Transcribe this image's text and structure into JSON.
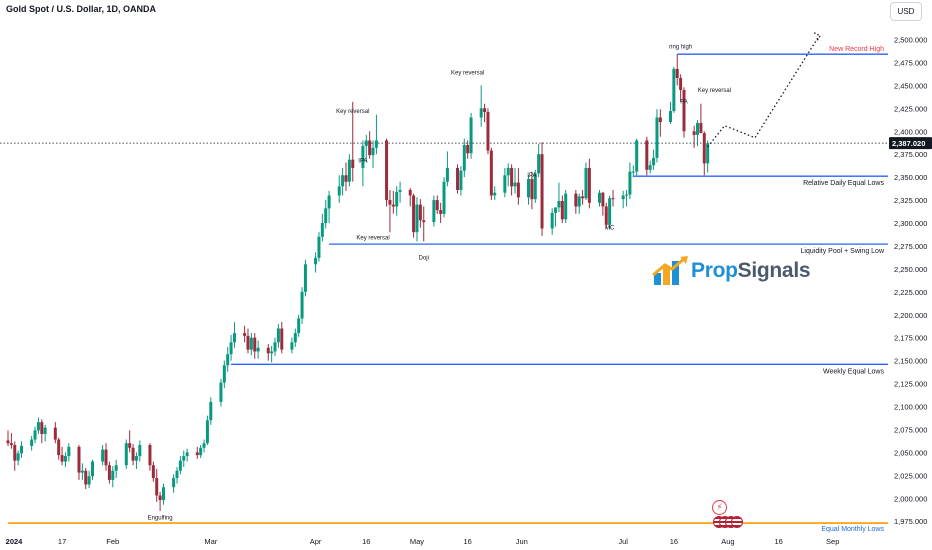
{
  "title": "Gold Spot / U.S. Dollar, 1D, OANDA",
  "currency_button": "USD",
  "watermark": {
    "part1": "Prop",
    "part2": "Signals"
  },
  "chart_data": {
    "type": "candlestick",
    "symbol": "XAUUSD",
    "interval": "1D",
    "ylim": [
      1966,
      2514
    ],
    "xlim": [
      "2024-01-01",
      "2024-09-06"
    ],
    "y_ticks": [
      1975,
      2000,
      2025,
      2050,
      2075,
      2100,
      2125,
      2150,
      2175,
      2200,
      2225,
      2250,
      2275,
      2300,
      2325,
      2350,
      2375,
      2400,
      2425,
      2450,
      2475,
      2500
    ],
    "y_tick_labels": [
      "1,975.000",
      "2,000.000",
      "2,025.000",
      "2,050.000",
      "2,075.000",
      "2,100.000",
      "2,125.000",
      "2,150.000",
      "2,175.000",
      "2,200.000",
      "2,225.000",
      "2,250.000",
      "2,275.000",
      "2,300.000",
      "2,325.000",
      "2,350.000",
      "2,375.000",
      "2,400.000",
      "2,425.000",
      "2,450.000",
      "2,475.000",
      "2,500.000"
    ],
    "x_ticks": [
      {
        "date": "2024-01-01",
        "label": "2024"
      },
      {
        "date": "2024-01-17",
        "label": "17"
      },
      {
        "date": "2024-02-01",
        "label": "Feb"
      },
      {
        "date": "2024-03-01",
        "label": "Mar"
      },
      {
        "date": "2024-04-01",
        "label": "Apr"
      },
      {
        "date": "2024-04-16",
        "label": "16"
      },
      {
        "date": "2024-05-01",
        "label": "May"
      },
      {
        "date": "2024-05-16",
        "label": "16"
      },
      {
        "date": "2024-06-01",
        "label": "Jun"
      },
      {
        "date": "2024-07-01",
        "label": "Jul"
      },
      {
        "date": "2024-07-16",
        "label": "16"
      },
      {
        "date": "2024-08-01",
        "label": "Aug"
      },
      {
        "date": "2024-08-16",
        "label": "16"
      },
      {
        "date": "2024-09-01",
        "label": "Sep"
      }
    ],
    "last_price": 2387.02,
    "last_price_label": "2,387.020",
    "colors": {
      "up": "#089981",
      "down": "#9c2b3c",
      "level": "#2962ff",
      "equal_monthly": "#ff9800",
      "red_text": "#f23645",
      "path": "#131722"
    },
    "levels": [
      {
        "label": "New Record High",
        "value": 2484,
        "from": "2024-07-17",
        "to": "2024-09-06",
        "color": "#f23645"
      },
      {
        "label": "Relative Daily Equal Lows",
        "value": 2351,
        "from": "2024-07-04",
        "to": "2024-09-06",
        "color": "#131722"
      },
      {
        "label": "Liquidity Pool + Swing Low",
        "value": 2277,
        "from": "2024-04-05",
        "to": "2024-09-06",
        "color": "#131722"
      },
      {
        "label": "Weekly Equal Lows",
        "value": 2146,
        "from": "2024-03-07",
        "to": "2024-09-06",
        "color": "#131722"
      },
      {
        "label": "Equal Monthly Lows",
        "value": 1973,
        "from": "2024-01-01",
        "to": "2024-09-06",
        "color": "#1e6bd6"
      }
    ],
    "projection": [
      [
        "2024-07-26",
        2383
      ],
      [
        "2024-07-31",
        2406
      ],
      [
        "2024-08-09",
        2393
      ],
      [
        "2024-08-28",
        2504
      ]
    ],
    "annotations": [
      {
        "text": "Key reversal",
        "date": "2024-04-12",
        "price": 2420
      },
      {
        "text": "IPA",
        "date": "2024-04-15",
        "price": 2366
      },
      {
        "text": "Key reversal",
        "date": "2024-04-18",
        "price": 2282
      },
      {
        "text": "Doji",
        "date": "2024-05-03",
        "price": 2260
      },
      {
        "text": "Key reversal",
        "date": "2024-05-16",
        "price": 2462
      },
      {
        "text": "IPA",
        "date": "2024-06-04",
        "price": 2350
      },
      {
        "text": "MC",
        "date": "2024-06-27",
        "price": 2293
      },
      {
        "text": "ring high",
        "date": "2024-07-18",
        "price": 2490
      },
      {
        "text": "Key reversal",
        "date": "2024-07-28",
        "price": 2443
      },
      {
        "text": "PA",
        "date": "2024-07-19",
        "price": 2430
      },
      {
        "text": "Engulfing",
        "date": "2024-02-15",
        "price": 1977
      }
    ],
    "candles": [
      [
        "2024-01-01",
        2063,
        2074,
        2057,
        2060
      ],
      [
        "2024-01-02",
        2060,
        2071,
        2054,
        2058
      ],
      [
        "2024-01-03",
        2058,
        2062,
        2030,
        2041
      ],
      [
        "2024-01-04",
        2041,
        2052,
        2036,
        2049
      ],
      [
        "2024-01-05",
        2049,
        2062,
        2044,
        2057
      ],
      [
        "2024-01-08",
        2057,
        2068,
        2052,
        2064
      ],
      [
        "2024-01-09",
        2064,
        2078,
        2060,
        2074
      ],
      [
        "2024-01-10",
        2074,
        2088,
        2070,
        2083
      ],
      [
        "2024-01-11",
        2083,
        2086,
        2060,
        2070
      ],
      [
        "2024-01-12",
        2070,
        2080,
        2062,
        2077
      ],
      [
        "2024-01-15",
        2077,
        2083,
        2060,
        2064
      ],
      [
        "2024-01-16",
        2064,
        2066,
        2042,
        2047
      ],
      [
        "2024-01-17",
        2047,
        2056,
        2036,
        2040
      ],
      [
        "2024-01-18",
        2040,
        2050,
        2034,
        2046
      ],
      [
        "2024-01-19",
        2046,
        2060,
        2040,
        2056
      ],
      [
        "2024-01-22",
        2056,
        2058,
        2020,
        2028
      ],
      [
        "2024-01-23",
        2028,
        2038,
        2020,
        2030
      ],
      [
        "2024-01-24",
        2030,
        2033,
        2010,
        2015
      ],
      [
        "2024-01-25",
        2015,
        2030,
        2011,
        2024
      ],
      [
        "2024-01-26",
        2024,
        2042,
        2020,
        2040
      ],
      [
        "2024-01-29",
        2040,
        2058,
        2036,
        2053
      ],
      [
        "2024-01-30",
        2053,
        2060,
        2030,
        2036
      ],
      [
        "2024-01-31",
        2036,
        2040,
        2016,
        2020
      ],
      [
        "2024-02-01",
        2020,
        2035,
        2012,
        2030
      ],
      [
        "2024-02-02",
        2030,
        2042,
        2022,
        2036
      ],
      [
        "2024-02-05",
        2036,
        2064,
        2032,
        2060
      ],
      [
        "2024-02-06",
        2060,
        2074,
        2050,
        2055
      ],
      [
        "2024-02-07",
        2055,
        2059,
        2036,
        2041
      ],
      [
        "2024-02-08",
        2041,
        2050,
        2032,
        2046
      ],
      [
        "2024-02-09",
        2046,
        2063,
        2040,
        2058
      ],
      [
        "2024-02-12",
        2058,
        2060,
        2030,
        2036
      ],
      [
        "2024-02-13",
        2036,
        2040,
        2018,
        2022
      ],
      [
        "2024-02-14",
        2022,
        2032,
        1996,
        2003
      ],
      [
        "2024-02-15",
        2003,
        2007,
        1986,
        1998
      ],
      [
        "2024-02-16",
        1998,
        2016,
        1993,
        2012
      ],
      [
        "2024-02-19",
        2012,
        2026,
        2006,
        2022
      ],
      [
        "2024-02-20",
        2022,
        2034,
        2016,
        2030
      ],
      [
        "2024-02-21",
        2030,
        2046,
        2026,
        2041
      ],
      [
        "2024-02-22",
        2041,
        2052,
        2034,
        2046
      ],
      [
        "2024-02-23",
        2046,
        2054,
        2040,
        2050
      ],
      [
        "2024-02-26",
        2050,
        2056,
        2043,
        2047
      ],
      [
        "2024-02-27",
        2047,
        2058,
        2044,
        2055
      ],
      [
        "2024-02-28",
        2055,
        2064,
        2050,
        2060
      ],
      [
        "2024-02-29",
        2060,
        2090,
        2058,
        2085
      ],
      [
        "2024-03-01",
        2085,
        2110,
        2080,
        2105
      ],
      [
        "2024-03-04",
        2105,
        2130,
        2100,
        2126
      ],
      [
        "2024-03-05",
        2126,
        2150,
        2120,
        2145
      ],
      [
        "2024-03-06",
        2145,
        2165,
        2138,
        2157
      ],
      [
        "2024-03-07",
        2157,
        2178,
        2150,
        2170
      ],
      [
        "2024-03-08",
        2170,
        2192,
        2164,
        2180
      ],
      [
        "2024-03-11",
        2180,
        2188,
        2170,
        2177
      ],
      [
        "2024-03-12",
        2177,
        2185,
        2158,
        2162
      ],
      [
        "2024-03-13",
        2162,
        2180,
        2156,
        2175
      ],
      [
        "2024-03-14",
        2175,
        2180,
        2152,
        2160
      ],
      [
        "2024-03-15",
        2160,
        2172,
        2152,
        2164
      ],
      [
        "2024-03-18",
        2164,
        2168,
        2150,
        2158
      ],
      [
        "2024-03-19",
        2158,
        2166,
        2148,
        2160
      ],
      [
        "2024-03-20",
        2160,
        2175,
        2155,
        2170
      ],
      [
        "2024-03-21",
        2170,
        2190,
        2164,
        2185
      ],
      [
        "2024-03-22",
        2185,
        2192,
        2158,
        2162
      ],
      [
        "2024-03-25",
        2162,
        2175,
        2158,
        2170
      ],
      [
        "2024-03-26",
        2170,
        2185,
        2165,
        2180
      ],
      [
        "2024-03-27",
        2180,
        2200,
        2176,
        2196
      ],
      [
        "2024-03-28",
        2196,
        2230,
        2190,
        2225
      ],
      [
        "2024-03-29",
        2225,
        2260,
        2220,
        2255
      ],
      [
        "2024-04-01",
        2255,
        2268,
        2246,
        2262
      ],
      [
        "2024-04-02",
        2262,
        2290,
        2258,
        2285
      ],
      [
        "2024-04-03",
        2285,
        2310,
        2280,
        2300
      ],
      [
        "2024-04-04",
        2300,
        2325,
        2294,
        2316
      ],
      [
        "2024-04-05",
        2316,
        2335,
        2300,
        2330
      ],
      [
        "2024-04-08",
        2330,
        2352,
        2322,
        2340
      ],
      [
        "2024-04-09",
        2340,
        2360,
        2330,
        2352
      ],
      [
        "2024-04-10",
        2352,
        2366,
        2335,
        2345
      ],
      [
        "2024-04-11",
        2345,
        2375,
        2340,
        2369
      ],
      [
        "2024-04-12",
        2369,
        2432,
        2345,
        2360
      ],
      [
        "2024-04-15",
        2360,
        2390,
        2340,
        2384
      ],
      [
        "2024-04-16",
        2384,
        2396,
        2366,
        2390
      ],
      [
        "2024-04-17",
        2390,
        2400,
        2370,
        2374
      ],
      [
        "2024-04-18",
        2374,
        2390,
        2360,
        2382
      ],
      [
        "2024-04-19",
        2382,
        2418,
        2375,
        2390
      ],
      [
        "2024-04-22",
        2390,
        2392,
        2318,
        2325
      ],
      [
        "2024-04-23",
        2325,
        2336,
        2290,
        2320
      ],
      [
        "2024-04-24",
        2320,
        2335,
        2310,
        2318
      ],
      [
        "2024-04-25",
        2318,
        2340,
        2308,
        2334
      ],
      [
        "2024-04-26",
        2334,
        2345,
        2322,
        2336
      ],
      [
        "2024-04-29",
        2336,
        2338,
        2318,
        2330
      ],
      [
        "2024-04-30",
        2330,
        2332,
        2284,
        2290
      ],
      [
        "2024-05-01",
        2290,
        2328,
        2280,
        2320
      ],
      [
        "2024-05-02",
        2320,
        2326,
        2295,
        2303
      ],
      [
        "2024-05-03",
        2303,
        2318,
        2280,
        2301
      ],
      [
        "2024-05-06",
        2301,
        2330,
        2296,
        2325
      ],
      [
        "2024-05-07",
        2325,
        2330,
        2310,
        2314
      ],
      [
        "2024-05-08",
        2314,
        2322,
        2300,
        2310
      ],
      [
        "2024-05-09",
        2310,
        2350,
        2306,
        2345
      ],
      [
        "2024-05-10",
        2345,
        2378,
        2340,
        2360
      ],
      [
        "2024-05-13",
        2360,
        2364,
        2332,
        2336
      ],
      [
        "2024-05-14",
        2336,
        2362,
        2330,
        2357
      ],
      [
        "2024-05-15",
        2357,
        2392,
        2350,
        2385
      ],
      [
        "2024-05-16",
        2385,
        2390,
        2370,
        2376
      ],
      [
        "2024-05-17",
        2376,
        2420,
        2370,
        2415
      ],
      [
        "2024-05-20",
        2415,
        2450,
        2405,
        2425
      ],
      [
        "2024-05-21",
        2425,
        2430,
        2410,
        2421
      ],
      [
        "2024-05-22",
        2421,
        2425,
        2375,
        2379
      ],
      [
        "2024-05-23",
        2379,
        2382,
        2325,
        2330
      ],
      [
        "2024-05-24",
        2330,
        2340,
        2325,
        2333
      ],
      [
        "2024-05-27",
        2333,
        2360,
        2328,
        2352
      ],
      [
        "2024-05-28",
        2352,
        2365,
        2340,
        2360
      ],
      [
        "2024-05-29",
        2360,
        2364,
        2330,
        2340
      ],
      [
        "2024-05-30",
        2340,
        2360,
        2332,
        2344
      ],
      [
        "2024-05-31",
        2344,
        2360,
        2320,
        2328
      ],
      [
        "2024-06-03",
        2328,
        2352,
        2320,
        2348
      ],
      [
        "2024-06-04",
        2348,
        2356,
        2315,
        2326
      ],
      [
        "2024-06-05",
        2326,
        2358,
        2322,
        2354
      ],
      [
        "2024-06-06",
        2354,
        2386,
        2350,
        2375
      ],
      [
        "2024-06-07",
        2375,
        2388,
        2286,
        2294
      ],
      [
        "2024-06-10",
        2294,
        2316,
        2287,
        2311
      ],
      [
        "2024-06-11",
        2311,
        2316,
        2296,
        2317
      ],
      [
        "2024-06-12",
        2317,
        2344,
        2312,
        2324
      ],
      [
        "2024-06-13",
        2324,
        2330,
        2300,
        2304
      ],
      [
        "2024-06-14",
        2304,
        2336,
        2300,
        2332
      ],
      [
        "2024-06-17",
        2332,
        2336,
        2310,
        2318
      ],
      [
        "2024-06-18",
        2318,
        2332,
        2310,
        2329
      ],
      [
        "2024-06-19",
        2329,
        2336,
        2320,
        2327
      ],
      [
        "2024-06-20",
        2327,
        2366,
        2325,
        2360
      ],
      [
        "2024-06-21",
        2360,
        2370,
        2316,
        2322
      ],
      [
        "2024-06-24",
        2322,
        2336,
        2318,
        2333
      ],
      [
        "2024-06-25",
        2333,
        2334,
        2308,
        2318
      ],
      [
        "2024-06-26",
        2318,
        2322,
        2294,
        2298
      ],
      [
        "2024-06-27",
        2298,
        2330,
        2293,
        2327
      ],
      [
        "2024-06-28",
        2327,
        2336,
        2318,
        2326
      ],
      [
        "2024-07-01",
        2326,
        2335,
        2316,
        2330
      ],
      [
        "2024-07-02",
        2330,
        2336,
        2318,
        2331
      ],
      [
        "2024-07-03",
        2331,
        2366,
        2326,
        2356
      ],
      [
        "2024-07-04",
        2356,
        2363,
        2350,
        2356
      ],
      [
        "2024-07-05",
        2356,
        2392,
        2352,
        2390
      ],
      [
        "2024-07-08",
        2390,
        2394,
        2352,
        2358
      ],
      [
        "2024-07-09",
        2358,
        2368,
        2354,
        2363
      ],
      [
        "2024-07-10",
        2363,
        2380,
        2358,
        2371
      ],
      [
        "2024-07-11",
        2371,
        2424,
        2366,
        2415
      ],
      [
        "2024-07-12",
        2415,
        2424,
        2394,
        2410
      ],
      [
        "2024-07-15",
        2410,
        2432,
        2408,
        2422
      ],
      [
        "2024-07-16",
        2422,
        2470,
        2420,
        2468
      ],
      [
        "2024-07-17",
        2468,
        2484,
        2450,
        2458
      ],
      [
        "2024-07-18",
        2458,
        2462,
        2432,
        2445
      ],
      [
        "2024-07-19",
        2445,
        2448,
        2393,
        2400
      ],
      [
        "2024-07-22",
        2400,
        2406,
        2382,
        2396
      ],
      [
        "2024-07-23",
        2396,
        2412,
        2384,
        2409
      ],
      [
        "2024-07-24",
        2409,
        2430,
        2398,
        2398
      ],
      [
        "2024-07-25",
        2398,
        2400,
        2352,
        2365
      ],
      [
        "2024-07-26",
        2365,
        2390,
        2355,
        2387
      ]
    ]
  }
}
